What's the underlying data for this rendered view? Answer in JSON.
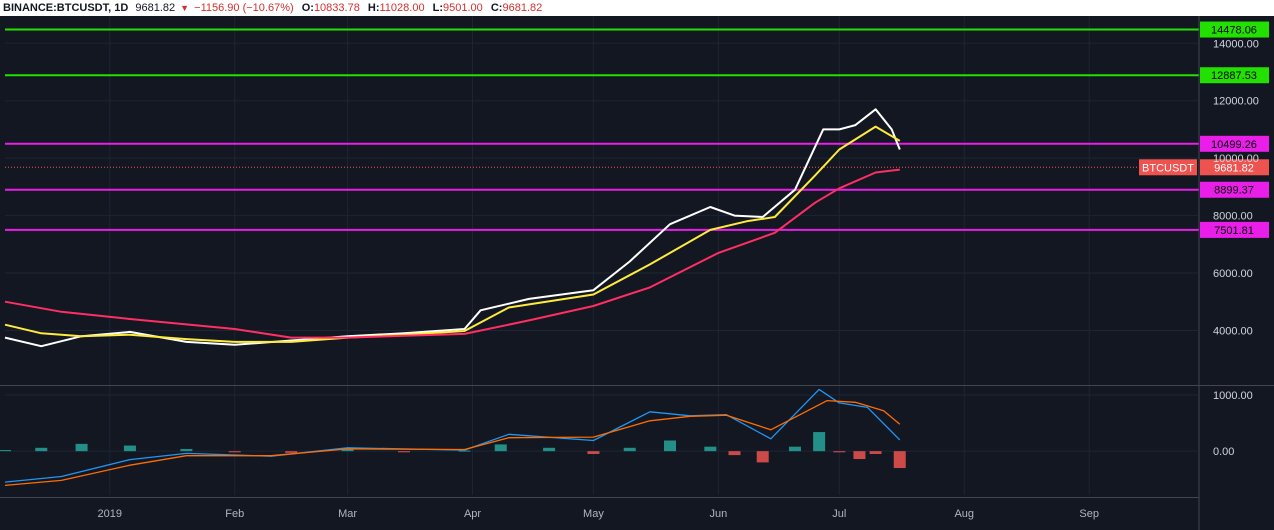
{
  "header": {
    "symbol": "BINANCE:BTCUSDT, 1D",
    "last": "9681.82",
    "change": "−1156.90 (−10.67%)",
    "o_label": "O:",
    "o_value": "10833.78",
    "h_label": "H:",
    "h_value": "11028.00",
    "l_label": "L:",
    "l_value": "9501.00",
    "c_label": "C:",
    "c_value": "9681.82",
    "down_arrow": "▼"
  },
  "chart_data": [
    {
      "type": "line",
      "title": "BINANCE:BTCUSDT, 1D",
      "price_axis_ticks": [
        "14000.00",
        "12000.00",
        "10000.00",
        "8000.00",
        "6000.00",
        "4000.00"
      ],
      "price_axis_values": [
        14000,
        12000,
        10000,
        8000,
        6000,
        4000
      ],
      "ylim": [
        2100,
        14950
      ],
      "x_tick_labels": [
        "2019",
        "Feb",
        "Mar",
        "Apr",
        "May",
        "Jun",
        "Jul",
        "Aug",
        "Sep"
      ],
      "x_tick_dates": [
        "2019-01-01",
        "2019-02-01",
        "2019-03-01",
        "2019-04-01",
        "2019-05-01",
        "2019-06-01",
        "2019-07-01",
        "2019-08-01",
        "2019-09-01"
      ],
      "xlim": [
        "2018-12-06",
        "2019-09-28"
      ],
      "horizontal_levels": [
        {
          "value": 14478.06,
          "label": "14478.06",
          "color": "#22e000"
        },
        {
          "value": 12887.53,
          "label": "12887.53",
          "color": "#22e000"
        },
        {
          "value": 10499.26,
          "label": "10499.26",
          "color": "#e91ee9"
        },
        {
          "value": 8899.37,
          "label": "8899.37",
          "color": "#e91ee9"
        },
        {
          "value": 7501.81,
          "label": "7501.81",
          "color": "#e91ee9"
        }
      ],
      "last_price": {
        "value": 9681.82,
        "symbol_label": "BTCUSDT",
        "price_label": "9681.82",
        "color": "#ef5350"
      },
      "series": [
        {
          "color": "#ffffff",
          "points": [
            [
              "2018-12-06",
              3750
            ],
            [
              "2018-12-15",
              3450
            ],
            [
              "2018-12-25",
              3800
            ],
            [
              "2019-01-06",
              3950
            ],
            [
              "2019-01-20",
              3600
            ],
            [
              "2019-02-01",
              3500
            ],
            [
              "2019-02-15",
              3650
            ],
            [
              "2019-03-01",
              3800
            ],
            [
              "2019-03-15",
              3900
            ],
            [
              "2019-03-30",
              4050
            ],
            [
              "2019-04-03",
              4700
            ],
            [
              "2019-04-15",
              5100
            ],
            [
              "2019-05-01",
              5400
            ],
            [
              "2019-05-10",
              6400
            ],
            [
              "2019-05-20",
              7700
            ],
            [
              "2019-05-30",
              8300
            ],
            [
              "2019-06-05",
              8000
            ],
            [
              "2019-06-12",
              7950
            ],
            [
              "2019-06-20",
              8900
            ],
            [
              "2019-06-27",
              11000
            ],
            [
              "2019-07-01",
              11000
            ],
            [
              "2019-07-05",
              11150
            ],
            [
              "2019-07-10",
              11700
            ],
            [
              "2019-07-14",
              11000
            ],
            [
              "2019-07-16",
              10300
            ]
          ]
        },
        {
          "color": "#ffeb3b",
          "points": [
            [
              "2018-12-06",
              4200
            ],
            [
              "2018-12-15",
              3900
            ],
            [
              "2018-12-25",
              3800
            ],
            [
              "2019-01-06",
              3850
            ],
            [
              "2019-01-20",
              3700
            ],
            [
              "2019-02-01",
              3600
            ],
            [
              "2019-02-15",
              3600
            ],
            [
              "2019-03-01",
              3750
            ],
            [
              "2019-03-15",
              3850
            ],
            [
              "2019-03-30",
              3980
            ],
            [
              "2019-04-10",
              4800
            ],
            [
              "2019-05-01",
              5250
            ],
            [
              "2019-05-15",
              6300
            ],
            [
              "2019-05-30",
              7500
            ],
            [
              "2019-06-08",
              7800
            ],
            [
              "2019-06-15",
              7950
            ],
            [
              "2019-06-25",
              9400
            ],
            [
              "2019-07-01",
              10300
            ],
            [
              "2019-07-10",
              11100
            ],
            [
              "2019-07-16",
              10600
            ]
          ]
        },
        {
          "color": "#ff2e63",
          "points": [
            [
              "2018-12-06",
              5000
            ],
            [
              "2018-12-20",
              4650
            ],
            [
              "2019-01-06",
              4400
            ],
            [
              "2019-02-01",
              4050
            ],
            [
              "2019-02-15",
              3750
            ],
            [
              "2019-03-01",
              3750
            ],
            [
              "2019-03-30",
              3880
            ],
            [
              "2019-04-15",
              4350
            ],
            [
              "2019-05-01",
              4850
            ],
            [
              "2019-05-15",
              5500
            ],
            [
              "2019-06-01",
              6700
            ],
            [
              "2019-06-15",
              7400
            ],
            [
              "2019-06-25",
              8450
            ],
            [
              "2019-07-01",
              8950
            ],
            [
              "2019-07-10",
              9500
            ],
            [
              "2019-07-16",
              9600
            ]
          ]
        }
      ]
    },
    {
      "type": "line",
      "price_axis_ticks": [
        "1000.00",
        "0.00"
      ],
      "price_axis_values": [
        1000,
        0
      ],
      "ylim": [
        -780,
        1160
      ],
      "series": [
        {
          "color": "#2196f3",
          "points": [
            [
              "2018-12-06",
              -550
            ],
            [
              "2018-12-20",
              -450
            ],
            [
              "2019-01-06",
              -150
            ],
            [
              "2019-01-20",
              -40
            ],
            [
              "2019-02-10",
              -90
            ],
            [
              "2019-03-01",
              60
            ],
            [
              "2019-03-30",
              20
            ],
            [
              "2019-04-10",
              300
            ],
            [
              "2019-05-01",
              190
            ],
            [
              "2019-05-15",
              700
            ],
            [
              "2019-05-25",
              630
            ],
            [
              "2019-06-03",
              650
            ],
            [
              "2019-06-14",
              220
            ],
            [
              "2019-06-26",
              1100
            ],
            [
              "2019-07-01",
              860
            ],
            [
              "2019-07-08",
              780
            ],
            [
              "2019-07-16",
              200
            ]
          ]
        },
        {
          "color": "#ff6d00",
          "points": [
            [
              "2018-12-06",
              -610
            ],
            [
              "2018-12-20",
              -520
            ],
            [
              "2019-01-06",
              -250
            ],
            [
              "2019-01-20",
              -80
            ],
            [
              "2019-02-10",
              -80
            ],
            [
              "2019-03-01",
              40
            ],
            [
              "2019-03-30",
              30
            ],
            [
              "2019-04-10",
              240
            ],
            [
              "2019-05-01",
              250
            ],
            [
              "2019-05-15",
              540
            ],
            [
              "2019-05-25",
              620
            ],
            [
              "2019-06-03",
              640
            ],
            [
              "2019-06-14",
              380
            ],
            [
              "2019-06-28",
              900
            ],
            [
              "2019-07-05",
              870
            ],
            [
              "2019-07-12",
              720
            ],
            [
              "2019-07-16",
              480
            ]
          ]
        }
      ],
      "histogram": [
        [
          "2018-12-06",
          20
        ],
        [
          "2018-12-15",
          60
        ],
        [
          "2018-12-25",
          130
        ],
        [
          "2019-01-06",
          100
        ],
        [
          "2019-01-20",
          40
        ],
        [
          "2019-02-01",
          -20
        ],
        [
          "2019-02-15",
          -30
        ],
        [
          "2019-03-01",
          30
        ],
        [
          "2019-03-15",
          -20
        ],
        [
          "2019-03-30",
          10
        ],
        [
          "2019-04-08",
          120
        ],
        [
          "2019-04-20",
          60
        ],
        [
          "2019-05-01",
          -50
        ],
        [
          "2019-05-10",
          60
        ],
        [
          "2019-05-20",
          190
        ],
        [
          "2019-05-30",
          80
        ],
        [
          "2019-06-05",
          -70
        ],
        [
          "2019-06-12",
          -200
        ],
        [
          "2019-06-20",
          80
        ],
        [
          "2019-06-26",
          340
        ],
        [
          "2019-07-01",
          -20
        ],
        [
          "2019-07-06",
          -140
        ],
        [
          "2019-07-10",
          -50
        ],
        [
          "2019-07-16",
          -300
        ]
      ]
    }
  ]
}
